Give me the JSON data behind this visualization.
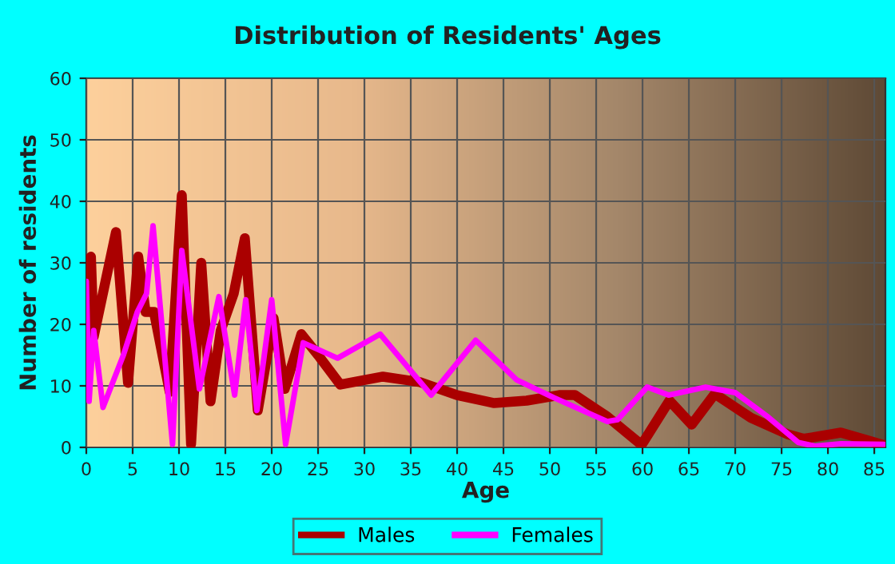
{
  "chart_data": {
    "type": "line",
    "title": "Distribution of Residents' Ages",
    "xlabel": "Age",
    "ylabel": "Number of residents",
    "xlim": [
      0,
      86.2
    ],
    "xticks": [
      0,
      5,
      10,
      15,
      20,
      25,
      30,
      35,
      40,
      45,
      50,
      55,
      60,
      65,
      70,
      75,
      80,
      85
    ],
    "ylim": [
      0,
      60
    ],
    "yticks": [
      0,
      10,
      20,
      30,
      40,
      50,
      60
    ],
    "grid": true,
    "legend": "bottom",
    "series": [
      {
        "name": "Males",
        "color": "#aa0000",
        "x": [
          0,
          0.5,
          0.8,
          3.2,
          4.5,
          5.6,
          6.4,
          7.3,
          9,
          10.3,
          11.3,
          12.4,
          13.4,
          14.5,
          15.9,
          17.1,
          18.5,
          20.2,
          21.4,
          23.2,
          25,
          27.4,
          32,
          36,
          40,
          44,
          47.5,
          51,
          52.7,
          56.2,
          59.9,
          62.9,
          65.3,
          67.8,
          71.7,
          75.7,
          77.4,
          81.4,
          86
        ],
        "values": [
          16,
          31,
          18,
          35,
          10.5,
          31,
          22,
          22,
          9,
          41,
          0.5,
          30,
          7.5,
          19,
          25,
          34,
          6,
          21,
          9.5,
          18.4,
          15,
          10.2,
          11.5,
          10.6,
          8.5,
          7.2,
          7.6,
          8.5,
          8.5,
          5,
          0.4,
          7.6,
          3.7,
          8.7,
          4.8,
          2.1,
          1.4,
          2.4,
          0.4
        ]
      },
      {
        "name": "Females",
        "color": "#ff00ff",
        "x": [
          0,
          0.3,
          0.8,
          1.8,
          4,
          5.5,
          6.5,
          7.2,
          9.3,
          10.3,
          12.2,
          14.3,
          16,
          17.2,
          18.4,
          20,
          21.5,
          23.4,
          27.1,
          31.7,
          37.2,
          42,
          46.4,
          50.4,
          56.2,
          57.3,
          60.5,
          62.8,
          66.8,
          70,
          73.4,
          76.8,
          78.6,
          81.4,
          86
        ],
        "values": [
          27,
          7.5,
          19,
          6.5,
          15,
          22,
          25,
          36,
          0.5,
          32,
          9.5,
          24.5,
          8.5,
          24,
          6,
          24,
          0.5,
          17,
          14.5,
          18.4,
          8.5,
          17.4,
          11,
          8.1,
          4.2,
          4.5,
          9.8,
          8.5,
          9.8,
          8.9,
          5.1,
          0.8,
          0.2,
          0.6,
          0.5
        ]
      }
    ]
  }
}
